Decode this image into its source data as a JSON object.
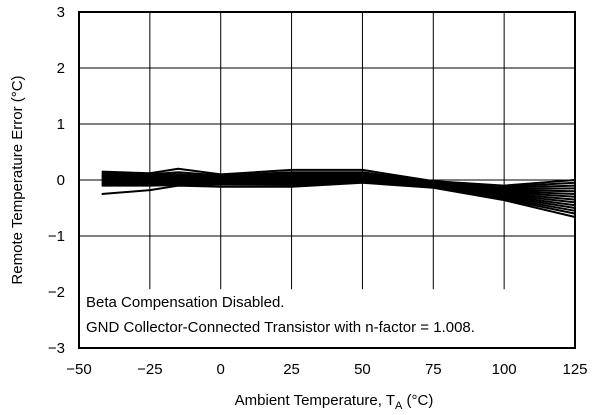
{
  "chart_data": {
    "type": "line",
    "title": "",
    "xlabel": "Ambient Temperature, T",
    "xlabel_sub": "A",
    "xlabel_unit": " (°C)",
    "ylabel": "Remote Temperature Error (°C)",
    "xlim": [
      -50,
      125
    ],
    "ylim": [
      -3,
      3
    ],
    "x_ticks": [
      -50,
      -25,
      0,
      25,
      50,
      75,
      100,
      125
    ],
    "y_ticks": [
      -3,
      -2,
      -1,
      0,
      1,
      2,
      3
    ],
    "x_tick_labels": [
      "−50",
      "−25",
      "0",
      "25",
      "50",
      "75",
      "100",
      "125"
    ],
    "y_tick_labels": [
      "−3",
      "−2",
      "−1",
      "0",
      "1",
      "2",
      "3"
    ],
    "grid": true,
    "line_color": "#000000",
    "annotations": [
      "Beta Compensation Disabled.",
      "GND Collector-Connected Transistor with n-factor = 1.008."
    ],
    "x": [
      -42,
      -25,
      -15,
      0,
      25,
      50,
      75,
      100,
      125
    ],
    "series": [
      {
        "values": [
          0.15,
          0.12,
          0.2,
          0.1,
          0.18,
          0.18,
          -0.02,
          -0.1,
          0.0
        ]
      },
      {
        "values": [
          0.12,
          0.1,
          0.14,
          0.08,
          0.14,
          0.14,
          -0.03,
          -0.12,
          -0.05
        ]
      },
      {
        "values": [
          0.1,
          0.08,
          0.1,
          0.06,
          0.11,
          0.11,
          -0.04,
          -0.14,
          -0.1
        ]
      },
      {
        "values": [
          0.08,
          0.06,
          0.08,
          0.05,
          0.09,
          0.09,
          -0.05,
          -0.16,
          -0.15
        ]
      },
      {
        "values": [
          0.06,
          0.05,
          0.06,
          0.04,
          0.07,
          0.07,
          -0.05,
          -0.18,
          -0.2
        ]
      },
      {
        "values": [
          0.04,
          0.03,
          0.04,
          0.03,
          0.05,
          0.05,
          -0.06,
          -0.2,
          -0.25
        ]
      },
      {
        "values": [
          0.02,
          0.01,
          0.02,
          0.02,
          0.03,
          0.03,
          -0.07,
          -0.22,
          -0.3
        ]
      },
      {
        "values": [
          0.0,
          0.0,
          0.0,
          0.01,
          0.02,
          0.02,
          -0.08,
          -0.24,
          -0.35
        ]
      },
      {
        "values": [
          -0.02,
          -0.02,
          -0.02,
          0.0,
          0.0,
          0.0,
          -0.09,
          -0.26,
          -0.4
        ]
      },
      {
        "values": [
          -0.04,
          -0.04,
          -0.04,
          -0.02,
          -0.02,
          -0.01,
          -0.1,
          -0.28,
          -0.45
        ]
      },
      {
        "values": [
          -0.06,
          -0.06,
          -0.06,
          -0.04,
          -0.04,
          -0.02,
          -0.11,
          -0.3,
          -0.5
        ]
      },
      {
        "values": [
          -0.08,
          -0.08,
          -0.08,
          -0.06,
          -0.06,
          -0.03,
          -0.12,
          -0.32,
          -0.55
        ]
      },
      {
        "values": [
          -0.1,
          -0.1,
          -0.09,
          -0.08,
          -0.09,
          -0.04,
          -0.13,
          -0.34,
          -0.6
        ]
      },
      {
        "values": [
          -0.25,
          -0.18,
          -0.1,
          -0.12,
          -0.12,
          -0.05,
          -0.14,
          -0.36,
          -0.66
        ]
      }
    ]
  }
}
